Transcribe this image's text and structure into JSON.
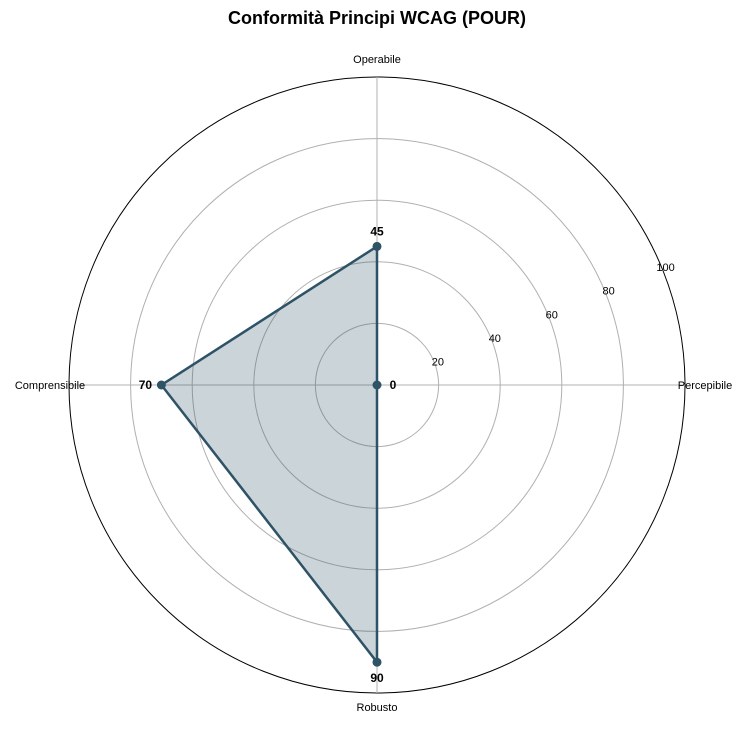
{
  "chart_data": {
    "type": "radar",
    "title": "Conformità Principi WCAG (POUR)",
    "categories": [
      "Percepibile",
      "Operabile",
      "Comprensibile",
      "Robusto"
    ],
    "series": [
      {
        "values": [
          0,
          45,
          70,
          90
        ]
      }
    ],
    "rlim": [
      0,
      100
    ],
    "r_ticks": [
      20,
      40,
      60,
      80,
      100
    ],
    "r_tick_labels": [
      "20",
      "40",
      "60",
      "80",
      "100"
    ],
    "data_labels": [
      "0",
      "45",
      "70",
      "90"
    ],
    "grid": true,
    "legend": "none",
    "colors": {
      "line": "#2e5266",
      "fill": "#2e5266",
      "grid": "#b0b0b0"
    }
  }
}
